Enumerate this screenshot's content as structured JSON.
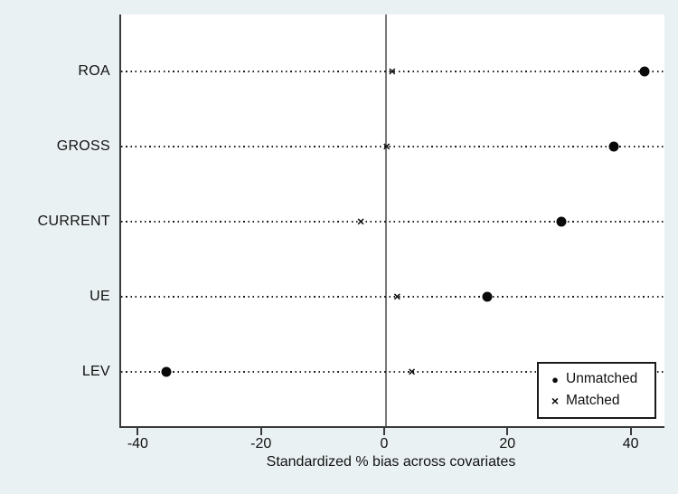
{
  "chart_data": {
    "type": "scatter",
    "title": "",
    "xlabel": "Standardized % bias across covariates",
    "ylabel": "",
    "categories": [
      "ROA",
      "GROSS",
      "CURRENT",
      "UE",
      "LEV"
    ],
    "series": [
      {
        "name": "Unmatched",
        "marker": "circle",
        "values": [
          42,
          37,
          28.4,
          16.4,
          -35.6
        ]
      },
      {
        "name": "Matched",
        "marker": "x",
        "values": [
          1,
          0.1,
          -4.1,
          1.8,
          4.2
        ]
      }
    ],
    "x_ticks": [
      -40,
      -20,
      0,
      20,
      40
    ],
    "xlim": [
      -43,
      45.2
    ],
    "zero_reference_line": true,
    "grid": "horizontal-dotted",
    "legend_position": "bottom-right"
  },
  "legend": {
    "items": [
      {
        "marker_glyph": "●",
        "label": "Unmatched"
      },
      {
        "marker_glyph": "×",
        "label": "Matched"
      }
    ]
  },
  "colors": {
    "background": "#eaf1f3",
    "plot_background": "#ffffff",
    "axis_line": "#3a3a3a",
    "zero_line": "#787878",
    "marker": "#0a0a0a",
    "gridline": "#1c1c1c"
  }
}
